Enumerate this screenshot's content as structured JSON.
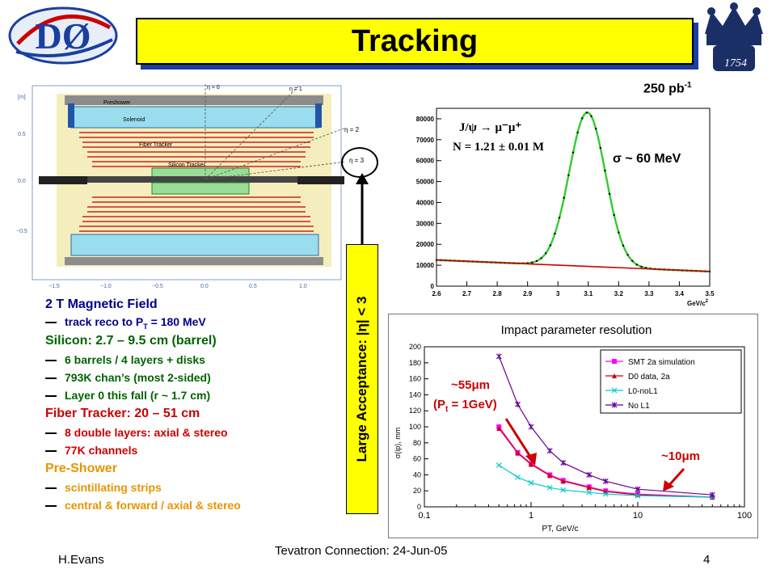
{
  "slide": {
    "title": "Tracking",
    "left_logo_text": "DØ",
    "right_logo_text": "1754",
    "footer_left": "H.Evans",
    "footer_center": "Tevatron Connection: 24-Jun-05",
    "footer_right": "4"
  },
  "bullets": [
    {
      "head": "2 T Magnetic Field",
      "color": "#00008b",
      "subs": [
        {
          "text_main": "track reco to P",
          "sub": "T",
          "rest": " = 180 MeV",
          "color": "#00008b"
        }
      ]
    },
    {
      "head": "Silicon: 2.7 – 9.5 cm (barrel)",
      "color": "#006400",
      "subs": [
        {
          "text_main": "6 barrels / 4 layers + disks",
          "color": "#006400"
        },
        {
          "text_main": "793K chan’s (most 2-sided)",
          "color": "#006400"
        },
        {
          "text_main": "Layer 0 this fall (r ~ 1.7 cm)",
          "color": "#006400"
        }
      ]
    },
    {
      "head": "Fiber Tracker: 20 – 51 cm",
      "color": "#cc0000",
      "subs": [
        {
          "text_main": "8 double layers: axial & stereo",
          "color": "#cc0000"
        },
        {
          "text_main": "77K channels",
          "color": "#cc0000"
        }
      ]
    },
    {
      "head": "Pre-Shower",
      "color": "#e69500",
      "subs": [
        {
          "text_main": "scintillating strips",
          "color": "#e69500"
        },
        {
          "text_main": "central & forward / axial & stereo",
          "color": "#e69500"
        }
      ]
    }
  ],
  "vertical_label": "Large Acceptance: |η| < 3",
  "detector": {
    "y_unit": "[m]",
    "y_ticks": [
      "0.5",
      "0.0",
      "−0.5"
    ],
    "x_ticks": [
      "−1.5",
      "−1.0",
      "−0.5",
      "0.0",
      "0.5",
      "1.0"
    ],
    "labels": [
      "Preshower",
      "Solenoid",
      "Fiber Tracker",
      "Silicon Tracker"
    ],
    "eta_labels": [
      "η = 0",
      "η = 1",
      "η = 2",
      "η = 3"
    ]
  },
  "jpsi": {
    "lumi_main": "250 pb",
    "lumi_sup": "-1",
    "decay": "J/ψ → μ⁻μ⁺",
    "count": "N = 1.21 ± 0.01 M",
    "sigma": "σ ~ 60 MeV",
    "x_unit": "GeV/c",
    "x_unit_sup": "2"
  },
  "impact": {
    "title": "Impact parameter resolution",
    "xlabel": "PT, GeV/c",
    "ylabel": "σ(ip), mm",
    "ann1_line1": "~55μm",
    "ann1_line2": "(P",
    "ann1_sub": "t",
    "ann1_rest": " = 1GeV)",
    "ann2": "~10μm"
  },
  "chart_data": [
    {
      "type": "line",
      "title": "",
      "xlabel": "GeV/c2",
      "ylabel": "",
      "xlim": [
        2.6,
        3.5
      ],
      "ylim": [
        0,
        85000
      ],
      "x_ticks": [
        "2.6",
        "2.7",
        "2.8",
        "2.9",
        "3",
        "3.1",
        "3.2",
        "3.3",
        "3.4",
        "3.5"
      ],
      "y_ticks": [
        "0",
        "10000",
        "20000",
        "30000",
        "40000",
        "50000",
        "60000",
        "70000",
        "80000"
      ],
      "series": [
        {
          "color": "#33cc33",
          "style": "gaussian-plus-background",
          "peak_x": 3.097,
          "peak_y": 83000,
          "sigma": 0.06,
          "bkg_start": 12500,
          "bkg_end": 7000
        },
        {
          "color": "#cc0000",
          "style": "background-line",
          "y_start": 12500,
          "y_end": 7000
        }
      ]
    },
    {
      "type": "line",
      "title": "Impact parameter resolution",
      "xlabel": "PT, GeV/c",
      "ylabel": "σ(ip), mm",
      "xscale": "log",
      "xlim": [
        0.1,
        100
      ],
      "ylim": [
        0,
        200
      ],
      "x_ticks": [
        "0.1",
        "1",
        "10",
        "100"
      ],
      "y_ticks": [
        "0",
        "20",
        "40",
        "60",
        "80",
        "100",
        "120",
        "140",
        "160",
        "180",
        "200"
      ],
      "legend": "top-right",
      "series": [
        {
          "name": "SMT 2a simulation",
          "color": "#ff00ff",
          "marker": "square",
          "x": [
            0.5,
            0.75,
            1.0,
            1.5,
            2.0,
            3.5,
            5.0,
            10.0,
            50.0
          ],
          "y": [
            100,
            68,
            54,
            40,
            33,
            25,
            20,
            16,
            12
          ]
        },
        {
          "name": "D0 data, 2a",
          "color": "#cc0000",
          "marker": "triangle",
          "x": [
            0.5,
            0.75,
            1.0,
            1.5,
            2.0,
            3.5,
            5.0,
            10.0,
            50.0
          ],
          "y": [
            98,
            67,
            53,
            39,
            32,
            24,
            19,
            15,
            12
          ]
        },
        {
          "name": "L0-noL1",
          "color": "#00cccc",
          "marker": "x",
          "x": [
            0.5,
            0.75,
            1.0,
            1.5,
            2.0,
            3.5,
            5.0,
            10.0,
            50.0
          ],
          "y": [
            52,
            37,
            30,
            24,
            21,
            18,
            16,
            14,
            12
          ]
        },
        {
          "name": "No L1",
          "color": "#660099",
          "marker": "star",
          "x": [
            0.5,
            0.75,
            1.0,
            1.5,
            2.0,
            3.5,
            5.0,
            10.0,
            50.0
          ],
          "y": [
            188,
            128,
            100,
            70,
            55,
            40,
            32,
            22,
            15
          ]
        }
      ]
    }
  ]
}
